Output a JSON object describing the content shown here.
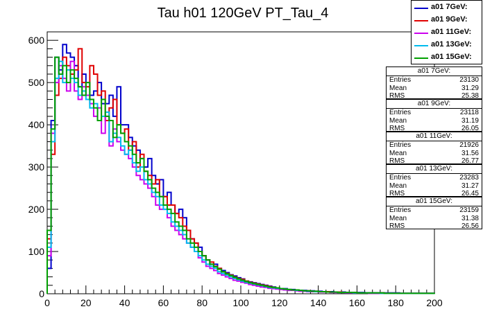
{
  "chart_data": {
    "type": "histogram",
    "title": "Tau h01 120GeV PT_Tau_4",
    "xlim": [
      0,
      200
    ],
    "ylim": [
      0,
      620
    ],
    "x_ticks": [
      "0",
      "20",
      "40",
      "60",
      "80",
      "100",
      "120",
      "140",
      "160",
      "180",
      "200"
    ],
    "y_ticks": [
      "0",
      "100",
      "200",
      "300",
      "400",
      "500",
      "600"
    ],
    "bin_width": 2,
    "series": [
      {
        "name": "a01 7GeV:",
        "color": "#0000cc",
        "values": [
          60,
          410,
          560,
          530,
          590,
          570,
          560,
          540,
          490,
          520,
          500,
          470,
          480,
          500,
          450,
          450,
          470,
          420,
          490,
          400,
          400,
          370,
          350,
          340,
          320,
          300,
          320,
          280,
          260,
          270,
          230,
          240,
          210,
          190,
          200,
          180,
          150,
          130,
          120,
          110,
          90,
          80,
          70,
          70,
          60,
          55,
          50,
          45,
          42,
          38,
          35,
          30,
          28,
          26,
          24,
          22,
          20,
          18,
          16,
          14,
          12,
          12,
          10,
          10,
          9,
          8,
          8,
          7,
          7,
          6,
          6,
          5,
          5,
          5,
          4,
          4,
          4,
          3,
          3,
          3,
          3,
          3,
          2,
          2,
          2,
          2,
          2,
          2,
          2,
          2,
          2,
          1,
          1,
          1,
          1,
          1,
          1,
          1,
          1,
          1
        ]
      },
      {
        "name": "a01 9GeV:",
        "color": "#e00000",
        "values": [
          130,
          330,
          470,
          510,
          560,
          540,
          520,
          530,
          580,
          500,
          490,
          540,
          520,
          470,
          480,
          410,
          440,
          460,
          400,
          380,
          390,
          340,
          360,
          300,
          330,
          290,
          280,
          260,
          270,
          230,
          230,
          210,
          210,
          190,
          180,
          160,
          150,
          130,
          120,
          100,
          90,
          80,
          75,
          65,
          60,
          52,
          48,
          44,
          40,
          36,
          34,
          30,
          27,
          25,
          23,
          21,
          19,
          17,
          15,
          13,
          12,
          11,
          10,
          9,
          9,
          8,
          7,
          7,
          6,
          6,
          5,
          5,
          5,
          4,
          4,
          4,
          3,
          3,
          3,
          3,
          2,
          2,
          2,
          2,
          2,
          2,
          2,
          1,
          1,
          1,
          1,
          1,
          1,
          1,
          1,
          1,
          1,
          1,
          1,
          1
        ]
      },
      {
        "name": "a01 11GeV:",
        "color": "#cc00ee",
        "values": [
          90,
          380,
          500,
          540,
          510,
          480,
          550,
          480,
          460,
          490,
          470,
          450,
          420,
          440,
          380,
          420,
          350,
          390,
          360,
          340,
          330,
          320,
          300,
          280,
          270,
          260,
          250,
          230,
          210,
          200,
          200,
          180,
          160,
          150,
          140,
          130,
          120,
          110,
          100,
          85,
          75,
          65,
          60,
          55,
          48,
          44,
          40,
          36,
          32,
          30,
          27,
          25,
          22,
          20,
          18,
          16,
          15,
          13,
          12,
          11,
          10,
          9,
          8,
          8,
          7,
          6,
          6,
          5,
          5,
          5,
          4,
          4,
          4,
          3,
          3,
          3,
          3,
          2,
          2,
          2,
          2,
          2,
          2,
          1,
          1,
          1,
          1,
          1,
          1,
          1,
          1,
          1,
          1,
          1,
          1,
          1,
          1,
          1,
          1,
          1
        ]
      },
      {
        "name": "a01 13GeV:",
        "color": "#00bbee",
        "values": [
          110,
          360,
          510,
          550,
          500,
          530,
          510,
          500,
          470,
          480,
          460,
          440,
          450,
          410,
          420,
          430,
          360,
          380,
          370,
          350,
          330,
          340,
          310,
          290,
          300,
          270,
          260,
          240,
          230,
          210,
          200,
          190,
          170,
          160,
          150,
          140,
          120,
          110,
          100,
          90,
          80,
          70,
          65,
          60,
          52,
          48,
          44,
          40,
          36,
          33,
          30,
          27,
          25,
          23,
          21,
          19,
          17,
          15,
          14,
          13,
          12,
          11,
          10,
          9,
          8,
          8,
          7,
          6,
          6,
          5,
          5,
          5,
          4,
          4,
          4,
          3,
          3,
          3,
          3,
          2,
          2,
          2,
          2,
          2,
          2,
          2,
          1,
          1,
          1,
          1,
          1,
          1,
          1,
          1,
          1,
          1,
          1,
          1,
          1,
          1
        ]
      },
      {
        "name": "a01 15GeV:",
        "color": "#00a000",
        "values": [
          150,
          390,
          560,
          520,
          540,
          500,
          530,
          510,
          490,
          470,
          500,
          460,
          440,
          410,
          460,
          420,
          410,
          370,
          400,
          380,
          360,
          350,
          330,
          310,
          320,
          290,
          270,
          250,
          240,
          230,
          210,
          200,
          190,
          170,
          160,
          150,
          130,
          120,
          110,
          100,
          90,
          80,
          70,
          64,
          58,
          52,
          47,
          43,
          39,
          35,
          32,
          29,
          26,
          24,
          22,
          20,
          18,
          16,
          15,
          14,
          12,
          11,
          10,
          9,
          9,
          8,
          7,
          7,
          6,
          6,
          5,
          5,
          4,
          4,
          4,
          3,
          3,
          3,
          3,
          3,
          2,
          2,
          2,
          2,
          2,
          2,
          2,
          1,
          1,
          1,
          1,
          1,
          1,
          1,
          1,
          1,
          1,
          1,
          1,
          1
        ]
      }
    ],
    "stats": [
      {
        "title": "a01 7GeV:",
        "entries": "23130",
        "mean": "31.29",
        "rms": "25.38"
      },
      {
        "title": "a01 9GeV:",
        "entries": "23118",
        "mean": "31.19",
        "rms": "26.05"
      },
      {
        "title": "a01 11GeV:",
        "entries": "21926",
        "mean": "31.56",
        "rms": "26.77"
      },
      {
        "title": "a01 13GeV:",
        "entries": "23283",
        "mean": "31.27",
        "rms": "26.45"
      },
      {
        "title": "a01 15GeV:",
        "entries": "23159",
        "mean": "31.38",
        "rms": "26.56"
      }
    ],
    "stats_labels": {
      "entries": "Entries",
      "mean": "Mean",
      "rms": "RMS"
    },
    "legend_position": "top-right",
    "grid": false
  }
}
